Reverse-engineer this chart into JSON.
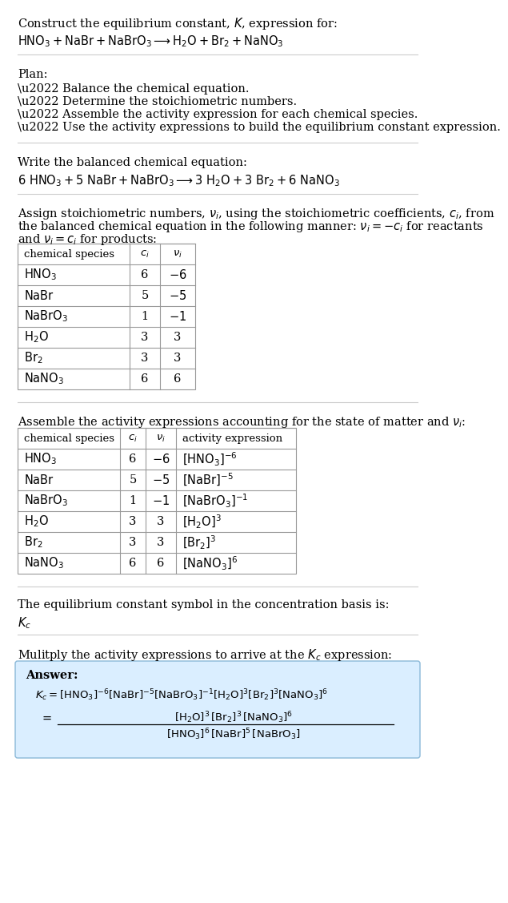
{
  "bg_color": "#ffffff",
  "title_line1": "Construct the equilibrium constant, $K$, expression for:",
  "title_line2": "$\\mathrm{HNO_3 + NaBr + NaBrO_3 \\longrightarrow H_2O + Br_2 + NaNO_3}$",
  "plan_header": "Plan:",
  "plan_items": [
    "\\u2022 Balance the chemical equation.",
    "\\u2022 Determine the stoichiometric numbers.",
    "\\u2022 Assemble the activity expression for each chemical species.",
    "\\u2022 Use the activity expressions to build the equilibrium constant expression."
  ],
  "balanced_header": "Write the balanced chemical equation:",
  "balanced_eq": "$6\\ \\mathrm{HNO_3} + 5\\ \\mathrm{NaBr} + \\mathrm{NaBrO_3} \\longrightarrow 3\\ \\mathrm{H_2O} + 3\\ \\mathrm{Br_2} + 6\\ \\mathrm{NaNO_3}$",
  "stoich_intro_l1": "Assign stoichiometric numbers, $\\nu_i$, using the stoichiometric coefficients, $c_i$, from",
  "stoich_intro_l2": "the balanced chemical equation in the following manner: $\\nu_i = -c_i$ for reactants",
  "stoich_intro_l3": "and $\\nu_i = c_i$ for products:",
  "table1_headers": [
    "chemical species",
    "$c_i$",
    "$\\nu_i$"
  ],
  "table1_rows": [
    [
      "$\\mathrm{HNO_3}$",
      "6",
      "$-6$"
    ],
    [
      "$\\mathrm{NaBr}$",
      "5",
      "$-5$"
    ],
    [
      "$\\mathrm{NaBrO_3}$",
      "1",
      "$-1$"
    ],
    [
      "$\\mathrm{H_2O}$",
      "3",
      "3"
    ],
    [
      "$\\mathrm{Br_2}$",
      "3",
      "3"
    ],
    [
      "$\\mathrm{NaNO_3}$",
      "6",
      "6"
    ]
  ],
  "activity_intro": "Assemble the activity expressions accounting for the state of matter and $\\nu_i$:",
  "table2_headers": [
    "chemical species",
    "$c_i$",
    "$\\nu_i$",
    "activity expression"
  ],
  "table2_rows": [
    [
      "$\\mathrm{HNO_3}$",
      "6",
      "$-6$",
      "$[\\mathrm{HNO_3}]^{-6}$"
    ],
    [
      "$\\mathrm{NaBr}$",
      "5",
      "$-5$",
      "$[\\mathrm{NaBr}]^{-5}$"
    ],
    [
      "$\\mathrm{NaBrO_3}$",
      "1",
      "$-1$",
      "$[\\mathrm{NaBrO_3}]^{-1}$"
    ],
    [
      "$\\mathrm{H_2O}$",
      "3",
      "3",
      "$[\\mathrm{H_2O}]^{3}$"
    ],
    [
      "$\\mathrm{Br_2}$",
      "3",
      "3",
      "$[\\mathrm{Br_2}]^{3}$"
    ],
    [
      "$\\mathrm{NaNO_3}$",
      "6",
      "6",
      "$[\\mathrm{NaNO_3}]^{6}$"
    ]
  ],
  "kc_intro": "The equilibrium constant symbol in the concentration basis is:",
  "kc_symbol": "$K_c$",
  "multiply_intro": "Mulitply the activity expressions to arrive at the $K_c$ expression:",
  "answer_label": "Answer:",
  "answer_box_color": "#daeeff",
  "answer_box_edge_color": "#8ab8d8",
  "sep_color": "#cccccc",
  "table_edge_color": "#999999",
  "font_size": 10.5,
  "font_size_small": 9.5
}
